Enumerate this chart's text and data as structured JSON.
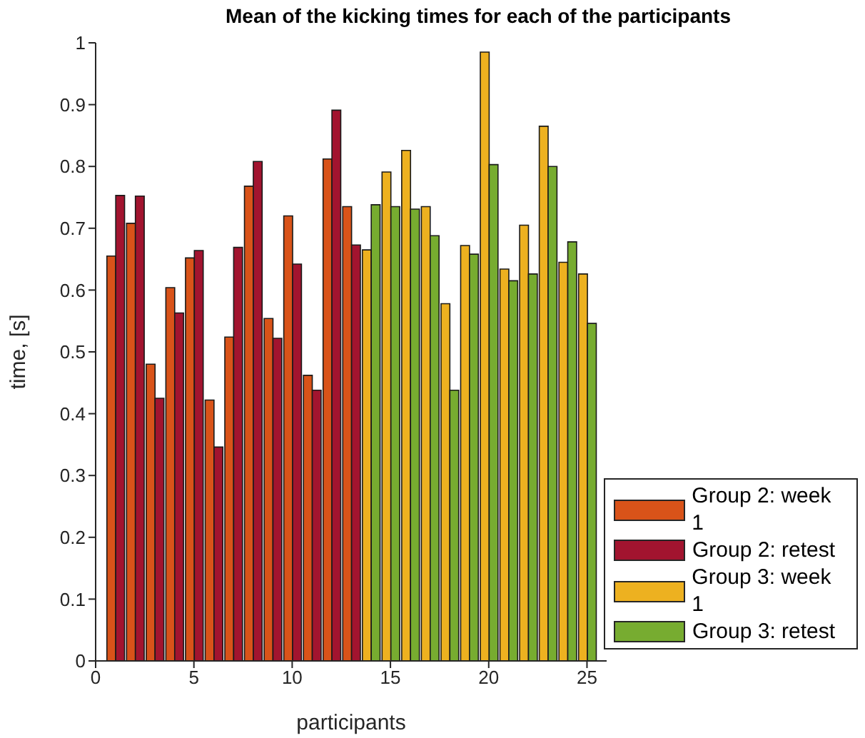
{
  "chart_data": {
    "type": "bar",
    "title": "Mean of the kicking times for each of the participants",
    "xlabel": "participants",
    "ylabel": "time, [s]",
    "x": [
      1,
      2,
      3,
      4,
      5,
      6,
      7,
      8,
      9,
      10,
      11,
      12,
      13,
      14,
      15,
      16,
      17,
      18,
      19,
      20,
      21,
      22,
      23,
      24,
      25
    ],
    "series": [
      {
        "name": "Group 2: week 1",
        "color": "#d95319",
        "values": [
          0.655,
          0.708,
          0.48,
          0.604,
          0.652,
          0.422,
          0.524,
          0.768,
          0.554,
          0.72,
          0.462,
          0.812,
          0.735,
          null,
          null,
          null,
          null,
          null,
          null,
          null,
          null,
          null,
          null,
          null,
          null
        ]
      },
      {
        "name": "Group 2: retest",
        "color": "#a2142f",
        "values": [
          0.753,
          0.752,
          0.425,
          0.563,
          0.664,
          0.346,
          0.669,
          0.808,
          0.522,
          0.642,
          0.438,
          0.891,
          0.673,
          null,
          null,
          null,
          null,
          null,
          null,
          null,
          null,
          null,
          null,
          null,
          null
        ]
      },
      {
        "name": "Group 3: week 1",
        "color": "#edb120",
        "values": [
          null,
          null,
          null,
          null,
          null,
          null,
          null,
          null,
          null,
          null,
          null,
          null,
          null,
          0.665,
          0.791,
          0.826,
          0.735,
          0.578,
          0.672,
          0.985,
          0.634,
          0.705,
          0.865,
          0.645,
          0.626
        ]
      },
      {
        "name": "Group 3: retest",
        "color": "#77ac30",
        "values": [
          null,
          null,
          null,
          null,
          null,
          null,
          null,
          null,
          null,
          null,
          null,
          null,
          null,
          0.738,
          0.735,
          0.731,
          0.688,
          0.438,
          0.658,
          0.803,
          0.615,
          0.626,
          0.8,
          0.678,
          0.546
        ]
      }
    ],
    "xlim": [
      0,
      26
    ],
    "xticks": [
      0,
      5,
      10,
      15,
      20,
      25
    ],
    "ylim": [
      0,
      1
    ],
    "yticks": [
      0,
      0.1,
      0.2,
      0.3,
      0.4,
      0.5,
      0.6,
      0.7,
      0.8,
      0.9,
      1
    ],
    "grid": false,
    "legend": "bottom right"
  }
}
